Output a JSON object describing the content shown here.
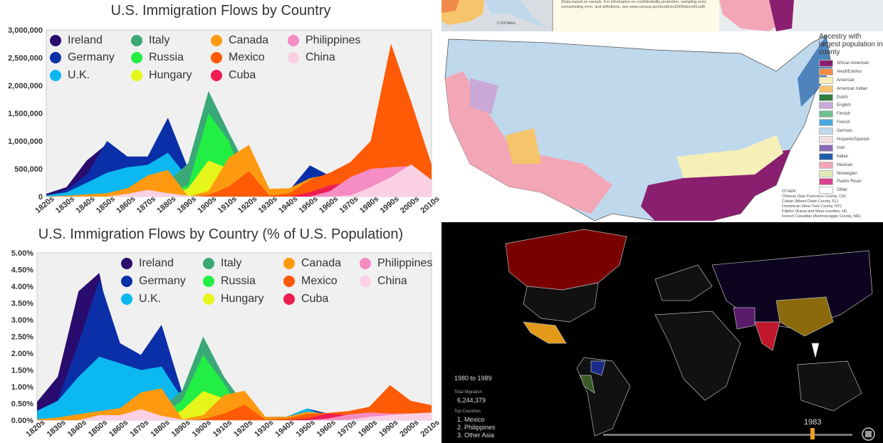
{
  "chart_data": [
    {
      "type": "area",
      "title": "U.S. Immigration Flows by Country",
      "xlabel": "",
      "ylabel": "",
      "ylim": [
        0,
        3000000
      ],
      "yticks": [
        "0",
        "500,000",
        "1,000,000",
        "1,500,000",
        "2,000,000",
        "2,500,000",
        "3,000,000"
      ],
      "ytick_values": [
        0,
        500000,
        1000000,
        1500000,
        2000000,
        2500000,
        3000000
      ],
      "legend": "top-left, inside plot",
      "grid": false,
      "categories": [
        "1820s",
        "1830s",
        "1840s",
        "1850s",
        "1860s",
        "1870s",
        "1880s",
        "1890s",
        "1900s",
        "1910s",
        "1920s",
        "1930s",
        "1940s",
        "1950s",
        "1960s",
        "1970s",
        "1980s",
        "1990s",
        "2000s",
        "2010s"
      ],
      "series": [
        {
          "name": "Ireland",
          "color": "#2a0b6e",
          "values": [
            50000,
            170000,
            650000,
            950000,
            450000,
            430000,
            650000,
            350000,
            390000,
            340000,
            150000,
            10000,
            10000,
            25000,
            50000,
            40000,
            30000,
            30000,
            60000,
            30000
          ]
        },
        {
          "name": "Germany",
          "color": "#0a2fa8",
          "values": [
            10000,
            120000,
            400000,
            1000000,
            720000,
            720000,
            1420000,
            500000,
            340000,
            170000,
            400000,
            110000,
            120000,
            560000,
            370000,
            200000,
            75000,
            90000,
            90000,
            30000
          ]
        },
        {
          "name": "U.K.",
          "color": "#0bb8f0",
          "values": [
            25000,
            75000,
            250000,
            430000,
            530000,
            570000,
            790000,
            330000,
            470000,
            500000,
            380000,
            30000,
            130000,
            280000,
            190000,
            130000,
            120000,
            150000,
            130000,
            80000
          ]
        },
        {
          "name": "Italy",
          "color": "#3aa877",
          "values": [
            0,
            2000,
            2000,
            8000,
            10000,
            45000,
            270000,
            600000,
            1900000,
            1150000,
            450000,
            70000,
            60000,
            185000,
            200000,
            130000,
            30000,
            30000,
            20000,
            20000
          ]
        },
        {
          "name": "Russia",
          "color": "#22ee44",
          "values": [
            0,
            0,
            0,
            0,
            0,
            40000,
            100000,
            200000,
            1500000,
            1000000,
            60000,
            0,
            0,
            0,
            0,
            0,
            0,
            0,
            0,
            0
          ]
        },
        {
          "name": "Hungary",
          "color": "#e6f51a",
          "values": [
            0,
            0,
            0,
            0,
            0,
            0,
            0,
            150000,
            650000,
            500000,
            30000,
            0,
            0,
            0,
            0,
            0,
            0,
            0,
            0,
            0
          ]
        },
        {
          "name": "Canada",
          "color": "#ff9a10",
          "values": [
            2000,
            15000,
            40000,
            60000,
            150000,
            380000,
            480000,
            3000,
            100000,
            700000,
            930000,
            140000,
            150000,
            330000,
            400000,
            170000,
            150000,
            190000,
            230000,
            150000
          ]
        },
        {
          "name": "Mexico",
          "color": "#ff5a05",
          "values": [
            0,
            0,
            0,
            0,
            0,
            0,
            0,
            0,
            30000,
            180000,
            460000,
            20000,
            60000,
            300000,
            430000,
            620000,
            1000000,
            2750000,
            1700000,
            580000
          ]
        },
        {
          "name": "Cuba",
          "color": "#ee1d52",
          "values": [
            0,
            0,
            0,
            0,
            0,
            0,
            0,
            0,
            0,
            0,
            0,
            0,
            0,
            80000,
            200000,
            260000,
            140000,
            160000,
            270000,
            100000
          ]
        },
        {
          "name": "Philippines",
          "color": "#f58cc4",
          "values": [
            0,
            0,
            0,
            0,
            0,
            0,
            0,
            0,
            0,
            0,
            0,
            0,
            0,
            0,
            100000,
            350000,
            500000,
            530000,
            550000,
            200000
          ]
        },
        {
          "name": "China",
          "color": "#fbd0e4",
          "values": [
            0,
            0,
            0,
            0,
            50000,
            120000,
            60000,
            15000,
            0,
            0,
            0,
            0,
            0,
            0,
            0,
            20000,
            170000,
            350000,
            580000,
            300000
          ]
        }
      ]
    },
    {
      "type": "area",
      "title": "U.S. Immigration Flows by Country (% of U.S. Population)",
      "xlabel": "",
      "ylabel": "",
      "ylim": [
        0,
        5
      ],
      "yticks": [
        "0.00%",
        "0.50%",
        "1.00%",
        "1.50%",
        "2.00%",
        "2.50%",
        "3.00%",
        "3.50%",
        "4.00%",
        "4.50%",
        "5.00%"
      ],
      "ytick_values": [
        0,
        0.5,
        1,
        1.5,
        2,
        2.5,
        3,
        3.5,
        4,
        4.5,
        5
      ],
      "legend": "top-right, inside plot",
      "grid": false,
      "categories": [
        "1820s",
        "1830s",
        "1840s",
        "1850s",
        "1860s",
        "1870s",
        "1880s",
        "1890s",
        "1900s",
        "1910s",
        "1920s",
        "1930s",
        "1940s",
        "1950s",
        "1960s",
        "1970s",
        "1980s",
        "1990s",
        "2000s",
        "2010s"
      ],
      "series": [
        {
          "name": "Ireland",
          "color": "#2a0b6e",
          "values": [
            0.55,
            1.3,
            3.85,
            4.4,
            1.4,
            1.1,
            1.3,
            0.6,
            0.4,
            0.3,
            0.2,
            0.01,
            0.01,
            0.02,
            0.03,
            0.02,
            0.01,
            0.01,
            0.02,
            0.01
          ]
        },
        {
          "name": "Germany",
          "color": "#0a2fa8",
          "values": [
            0.1,
            0.6,
            2.3,
            4.2,
            2.3,
            1.95,
            2.85,
            0.8,
            0.4,
            0.2,
            0.35,
            0.1,
            0.1,
            0.35,
            0.2,
            0.1,
            0.03,
            0.03,
            0.03,
            0.01
          ]
        },
        {
          "name": "U.K.",
          "color": "#0bb8f0",
          "values": [
            0.28,
            0.58,
            1.3,
            1.9,
            1.7,
            1.5,
            1.6,
            0.65,
            0.6,
            0.4,
            0.3,
            0.02,
            0.1,
            0.35,
            0.1,
            0.06,
            0.05,
            0.05,
            0.05,
            0.03
          ]
        },
        {
          "name": "Italy",
          "color": "#3aa877",
          "values": [
            0,
            0,
            0,
            0,
            0,
            0.05,
            0.35,
            0.9,
            2.5,
            1.3,
            0.45,
            0.05,
            0.05,
            0.1,
            0.1,
            0.06,
            0.01,
            0.01,
            0.01,
            0.01
          ]
        },
        {
          "name": "Russia",
          "color": "#22ee44",
          "values": [
            0,
            0,
            0,
            0,
            0,
            0.02,
            0.1,
            0.6,
            1.95,
            1.1,
            0.05,
            0,
            0,
            0,
            0,
            0,
            0,
            0,
            0,
            0
          ]
        },
        {
          "name": "Hungary",
          "color": "#e6f51a",
          "values": [
            0,
            0,
            0,
            0,
            0,
            0,
            0,
            0.3,
            0.87,
            0.65,
            0.1,
            0,
            0,
            0,
            0,
            0,
            0,
            0,
            0,
            0
          ]
        },
        {
          "name": "Canada",
          "color": "#ff9a10",
          "values": [
            0.03,
            0.08,
            0.18,
            0.27,
            0.36,
            0.83,
            0.95,
            0.03,
            0.15,
            0.75,
            0.88,
            0.1,
            0.1,
            0.25,
            0.2,
            0.1,
            0.05,
            0.05,
            0.05,
            0.05
          ]
        },
        {
          "name": "Mexico",
          "color": "#ff5a05",
          "values": [
            0,
            0,
            0,
            0,
            0,
            0,
            0,
            0,
            0.03,
            0.2,
            0.46,
            0.02,
            0.05,
            0.18,
            0.22,
            0.27,
            0.4,
            1.05,
            0.58,
            0.45
          ]
        },
        {
          "name": "Cuba",
          "color": "#ee1d52",
          "values": [
            0,
            0,
            0,
            0,
            0,
            0,
            0,
            0,
            0,
            0,
            0,
            0,
            0,
            0.05,
            0.2,
            0.15,
            0.07,
            0.06,
            0.09,
            0.03
          ]
        },
        {
          "name": "Philippines",
          "color": "#f58cc4",
          "values": [
            0,
            0,
            0,
            0,
            0,
            0,
            0,
            0,
            0,
            0,
            0,
            0,
            0,
            0,
            0.05,
            0.17,
            0.23,
            0.2,
            0.2,
            0.1
          ]
        },
        {
          "name": "China",
          "color": "#fbd0e4",
          "values": [
            0,
            0,
            0,
            0.15,
            0.15,
            0.33,
            0.13,
            0.02,
            0,
            0,
            0,
            0,
            0,
            0,
            0,
            0.01,
            0.1,
            0.15,
            0.2,
            0.23
          ]
        }
      ]
    }
  ],
  "ancestry_map": {
    "legend_title": "Ancestry with largest population in county",
    "legend": [
      {
        "label": "African American",
        "color": "#8b1f6f"
      },
      {
        "label": "Aleut/Eskimo",
        "color": "#f28a4a"
      },
      {
        "label": "American",
        "color": "#f6f0b8"
      },
      {
        "label": "American Indian",
        "color": "#f6c46a"
      },
      {
        "label": "Dutch",
        "color": "#2f7d3e"
      },
      {
        "label": "English",
        "color": "#c9a8d8"
      },
      {
        "label": "Finnish",
        "color": "#6fc08f"
      },
      {
        "label": "French",
        "color": "#4aa8dc"
      },
      {
        "label": "German",
        "color": "#bfd8ec"
      },
      {
        "label": "Hispanic/Spanish",
        "color": "#f3dede"
      },
      {
        "label": "Irish",
        "color": "#8a6cb6"
      },
      {
        "label": "Italian",
        "color": "#1f5fa8"
      },
      {
        "label": "Mexican",
        "color": "#f3a6b6"
      },
      {
        "label": "Norwegian",
        "color": "#dfeab4"
      },
      {
        "label": "Puerto Rican",
        "color": "#d8418e"
      },
      {
        "label": "Other",
        "color": "#ffffff"
      }
    ],
    "other_title": "OTHER:",
    "other_notes": [
      "Chinese (San Francisco County, CA)",
      "Cuban (Miami-Dade County, FL)",
      "Dominican (New York County, NY)",
      "Filipino (Kauai and Maui counties, HI)",
      "French Canadian (Androscoggin County, ME)"
    ],
    "source_note": "(Data based on sample. For information on confidentiality protection, sampling error, nonsampling error, and definitions, see www.census.gov/prod/cen2000/doc/sf3.pdf)",
    "scale_label": "0   100 Miles"
  },
  "migration_map": {
    "period": "1980 to 1989",
    "total_label": "Total Migration",
    "total_value": "6,244,379",
    "top_label": "Top Countries",
    "top_countries": [
      "1.  Mexico",
      "2.  Philippines",
      "3.  Other Asia"
    ],
    "slider_year": "1983",
    "slider_fraction": 0.84,
    "slider_color": "#e8a020",
    "stop_icon": "stop-icon"
  }
}
